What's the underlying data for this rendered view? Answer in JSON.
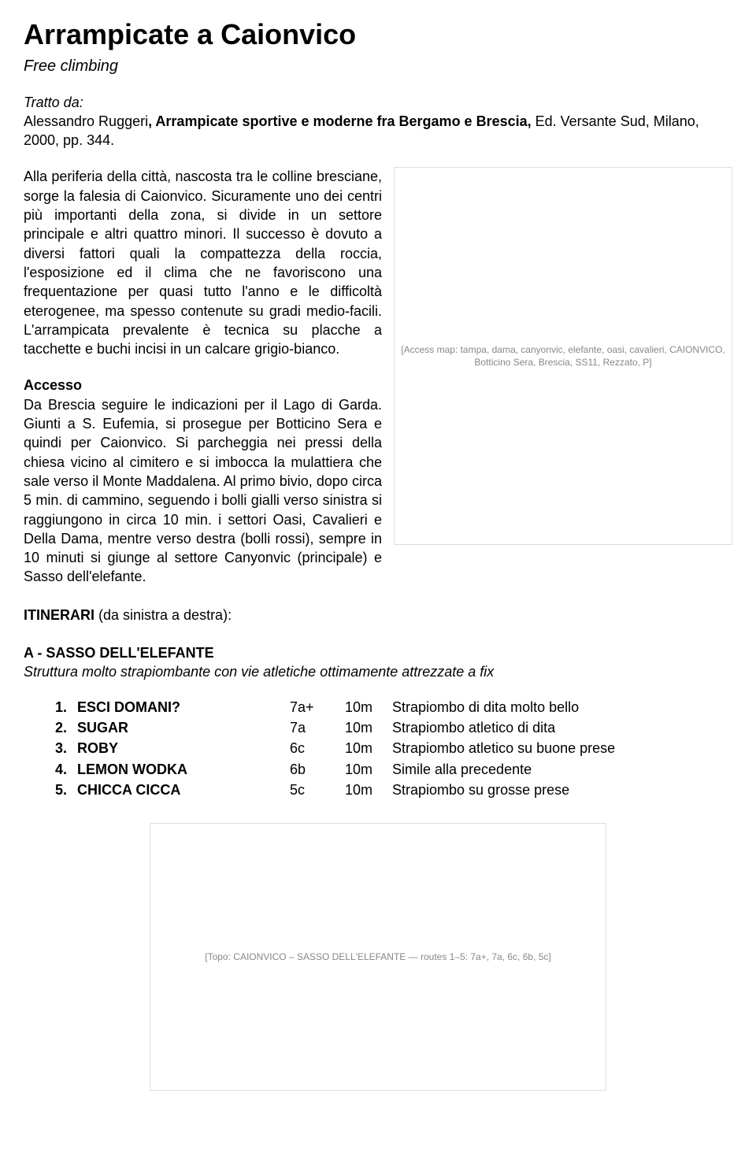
{
  "title": "Arrampicate a Caionvico",
  "subtitle": "Free climbing",
  "source": {
    "tratto": "Tratto da:",
    "author": "Alessandro Ruggeri",
    "book": ", Arrampicate sportive e moderne fra Bergamo e Brescia,",
    "rest": " Ed. Versante Sud, Milano, 2000, pp. 344."
  },
  "intro": "Alla periferia della città, nascosta tra le colline bresciane, sorge la falesia di Caionvico. Sicuramente uno dei centri più importanti della zona, si divide in un settore principale e altri quattro minori. Il successo è dovuto a diversi fattori quali la compattezza della roccia, l'esposizione ed il clima che ne favoriscono una frequentazione per quasi tutto l'anno e le difficoltà eterogenee, ma spesso contenute su gradi medio-facili. L'arrampicata prevalente è tecnica su placche a tacchette e buchi incisi in un calcare grigio-bianco.",
  "accesso": {
    "title": "Accesso",
    "text": "Da Brescia seguire le indicazioni per il Lago di Garda. Giunti a S. Eufemia, si prosegue per Botticino Sera e quindi per Caionvico. Si parcheggia nei pressi della chiesa vicino al cimitero e si imbocca la mulattiera che sale verso il Monte Maddalena. Al primo bivio, dopo circa 5 min. di cammino, seguendo i bolli gialli verso sinistra si raggiungono in circa 10 min. i settori Oasi, Cavalieri e Della Dama, mentre verso destra (bolli rossi), sempre in 10 minuti si giunge al settore Canyonvic (principale) e Sasso dell'elefante."
  },
  "itinerari": {
    "label": "ITINERARI",
    "rest": " (da sinistra a destra):"
  },
  "sector": {
    "title": "A - SASSO DELL'ELEFANTE",
    "desc": "Struttura molto strapiombante con vie atletiche ottimamente attrezzate a fix"
  },
  "routes": [
    {
      "num": "1.",
      "name": "ESCI DOMANI?",
      "grade": "7a+",
      "len": "10m",
      "desc": "Strapiombo di dita molto bello"
    },
    {
      "num": "2.",
      "name": "SUGAR",
      "grade": "7a",
      "len": "10m",
      "desc": "Strapiombo atletico di dita"
    },
    {
      "num": "3.",
      "name": "ROBY",
      "grade": "6c",
      "len": "10m",
      "desc": "Strapiombo atletico su buone prese"
    },
    {
      "num": "4.",
      "name": "LEMON WODKA",
      "grade": "6b",
      "len": "10m",
      "desc": "Simile alla precedente"
    },
    {
      "num": "5.",
      "name": "CHICCA CICCA",
      "grade": "5c",
      "len": "10m",
      "desc": "Strapiombo su grosse prese"
    }
  ],
  "map": {
    "caption": "[Access map: tampa, dama, canyonvic, elefante, oasi, cavalieri, CAIONVICO, Botticino Sera, Brescia, SS11, Rezzato, P]"
  },
  "topo": {
    "caption": "[Topo: CAIONVICO – SASSO DELL'ELEFANTE — routes 1–5: 7a+, 7a, 6c, 6b, 5c]"
  }
}
